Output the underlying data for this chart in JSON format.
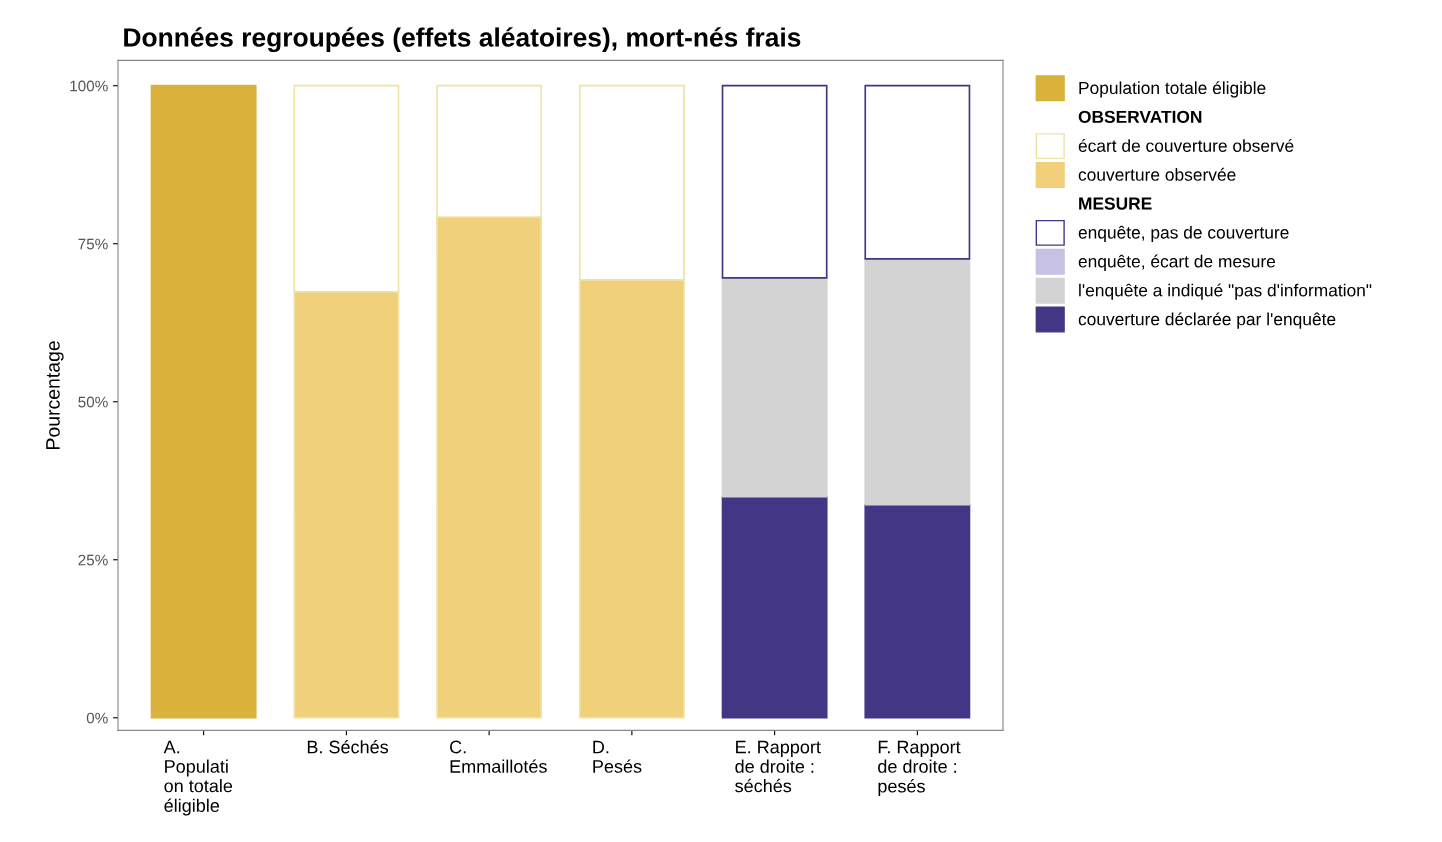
{
  "chart_data": {
    "type": "bar",
    "stacked": true,
    "title": "Données regroupées (effets aléatoires), mort-nés frais",
    "ylabel": "Pourcentage",
    "categories": [
      "A.\nPopulati\non totale\néligible",
      "B. Séchés",
      "C.\nEmmaillotés",
      "D.\nPesés",
      "E. Rapport\nde droite :\nséchés",
      "F. Rapport\nde droite :\npesés"
    ],
    "series": [
      {
        "name": "Population totale éligible",
        "color": "#d9b13b",
        "values": [
          100,
          null,
          null,
          null,
          null,
          null
        ]
      },
      {
        "name": "couverture observée",
        "color": "#f0d07a",
        "values": [
          null,
          67.4,
          79.2,
          69.3,
          null,
          null
        ]
      },
      {
        "name": "écart de couverture observé",
        "color": "#ffffff",
        "values": [
          null,
          32.6,
          20.8,
          30.7,
          null,
          null
        ]
      },
      {
        "name": "couverture déclarée par l'enquête",
        "color": "#433785",
        "values": [
          null,
          null,
          null,
          null,
          35.0,
          33.7
        ]
      },
      {
        "name": "l'enquête a indiqué \"pas d'information\"",
        "color": "#d3d3d3",
        "values": [
          null,
          null,
          null,
          null,
          34.6,
          38.9
        ]
      },
      {
        "name": "enquête, écart de mesure",
        "color": "#c7c1e3",
        "values": [
          null,
          null,
          null,
          null,
          null,
          null
        ]
      },
      {
        "name": "enquête, pas de couverture",
        "color": "#ffffff",
        "values": [
          null,
          null,
          null,
          null,
          30.4,
          27.4
        ]
      }
    ],
    "annotations": [
      "OBSERVATION",
      "MESURE"
    ],
    "ylim": [
      -2,
      104
    ],
    "yticks": [
      {
        "value": 0,
        "label": "0%"
      },
      {
        "value": 25,
        "label": "25%"
      },
      {
        "value": 50,
        "label": "50%"
      },
      {
        "value": 75,
        "label": "75%"
      },
      {
        "value": 100,
        "label": "100%"
      }
    ],
    "grid": false,
    "legend": "top right"
  }
}
